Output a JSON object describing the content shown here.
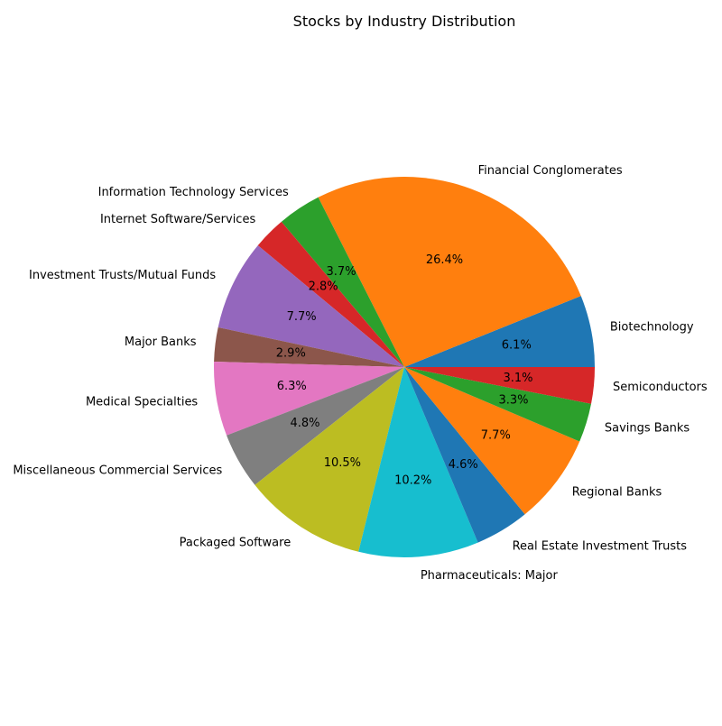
{
  "chart_data": {
    "type": "pie",
    "title": "Stocks by Industry Distribution",
    "start_angle_deg": 0,
    "direction": "counterclockwise",
    "slices": [
      {
        "label": "Biotechnology",
        "value": 6.1,
        "pct_label": "6.1%",
        "color": "#1f77b4"
      },
      {
        "label": "Financial Conglomerates",
        "value": 26.4,
        "pct_label": "26.4%",
        "color": "#ff7f0e"
      },
      {
        "label": "Information Technology Services",
        "value": 3.7,
        "pct_label": "3.7%",
        "color": "#2ca02c"
      },
      {
        "label": "Internet Software/Services",
        "value": 2.8,
        "pct_label": "2.8%",
        "color": "#d62728"
      },
      {
        "label": "Investment Trusts/Mutual Funds",
        "value": 7.7,
        "pct_label": "7.7%",
        "color": "#9467bd"
      },
      {
        "label": "Major Banks",
        "value": 2.9,
        "pct_label": "2.9%",
        "color": "#8c564b"
      },
      {
        "label": "Medical Specialties",
        "value": 6.3,
        "pct_label": "6.3%",
        "color": "#e377c2"
      },
      {
        "label": "Miscellaneous Commercial Services",
        "value": 4.8,
        "pct_label": "4.8%",
        "color": "#7f7f7f"
      },
      {
        "label": "Packaged Software",
        "value": 10.5,
        "pct_label": "10.5%",
        "color": "#bcbd22"
      },
      {
        "label": "Pharmaceuticals: Major",
        "value": 10.2,
        "pct_label": "10.2%",
        "color": "#17becf"
      },
      {
        "label": "Real Estate Investment Trusts",
        "value": 4.6,
        "pct_label": "4.6%",
        "color": "#1f77b4"
      },
      {
        "label": "Regional Banks",
        "value": 7.7,
        "pct_label": "7.7%",
        "color": "#ff7f0e"
      },
      {
        "label": "Savings Banks",
        "value": 3.3,
        "pct_label": "3.3%",
        "color": "#2ca02c"
      },
      {
        "label": "Semiconductors",
        "value": 3.1,
        "pct_label": "3.1%",
        "color": "#d62728"
      }
    ]
  }
}
